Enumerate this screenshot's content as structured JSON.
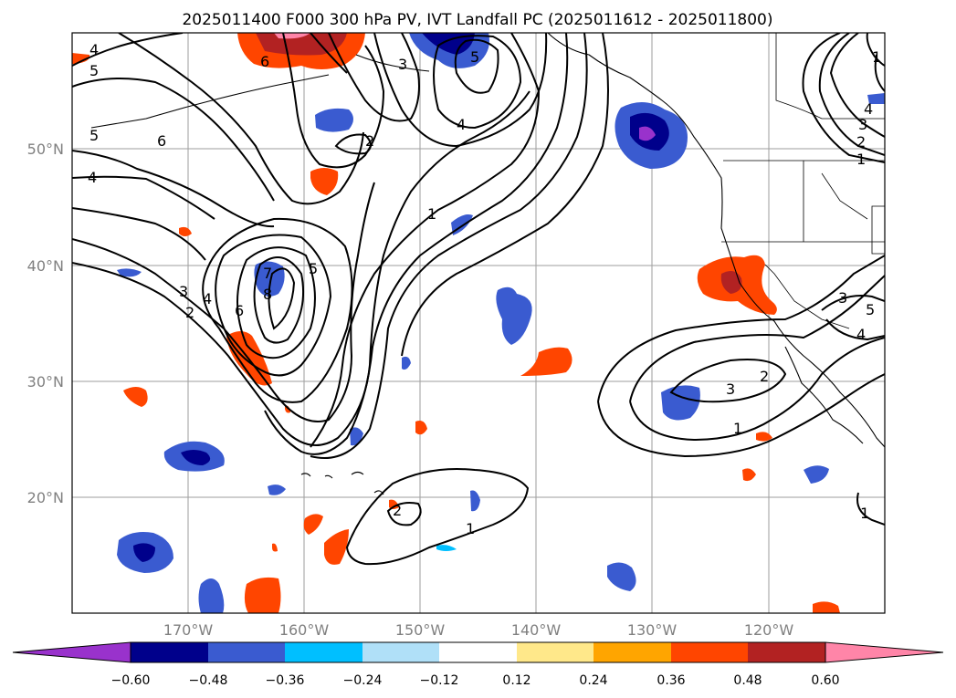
{
  "title": "2025011400 F000 300 hPa PV, IVT Landfall PC (2025011612 - 2025011800)",
  "lat_ticks": [
    "50°N",
    "40°N",
    "30°N",
    "20°N"
  ],
  "lon_ticks": [
    "170°W",
    "160°W",
    "150°W",
    "140°W",
    "130°W",
    "120°W"
  ],
  "colorbar": {
    "ticks": [
      "−0.60",
      "−0.48",
      "−0.36",
      "−0.24",
      "−0.12",
      "0.12",
      "0.24",
      "0.36",
      "0.48",
      "0.60"
    ],
    "colors": [
      "#9932cc",
      "#00008b",
      "#3a5bd0",
      "#00bfff",
      "#b0e0f8",
      "#ffffff",
      "#ffe88a",
      "#ffa500",
      "#ff4500",
      "#b22222",
      "#ff85a8"
    ]
  },
  "contour_labels": [
    "4",
    "5",
    "5",
    "6",
    "4",
    "3",
    "5",
    "2",
    "4",
    "6",
    "1",
    "5",
    "7",
    "8",
    "6",
    "4",
    "3",
    "2",
    "1",
    "4",
    "3",
    "2",
    "1",
    "3",
    "2",
    "1",
    "3",
    "4",
    "5",
    "2",
    "1",
    "1"
  ],
  "colors": {
    "negative": "#3a5bd0",
    "positive": "#ff4500",
    "grid": "#9e9e9e"
  }
}
